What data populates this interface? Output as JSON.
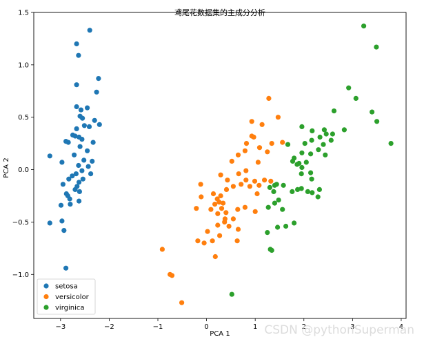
{
  "chart_data": {
    "type": "scatter",
    "title": "鸢尾花数据集的主成分分析",
    "xlabel": "PCA 1",
    "ylabel": "PCA 2",
    "xlim": [
      -3.55,
      4.1
    ],
    "ylim": [
      -1.42,
      1.5
    ],
    "xticks": [
      -3,
      -2,
      -1,
      0,
      1,
      2,
      3,
      4
    ],
    "xtick_labels": [
      "−3",
      "−2",
      "−1",
      "0",
      "1",
      "2",
      "3",
      "4"
    ],
    "yticks": [
      -1.0,
      -0.5,
      0.0,
      0.5,
      1.0,
      1.5
    ],
    "ytick_labels": [
      "−1.0",
      "−0.5",
      "0.0",
      "0.5",
      "1.0",
      "1.5"
    ],
    "grid": false,
    "legend_position": "lower-left",
    "series": [
      {
        "name": "setosa",
        "color": "#1f77b4",
        "points": [
          [
            -2.4,
            1.33
          ],
          [
            -2.67,
            1.2
          ],
          [
            -2.63,
            1.09
          ],
          [
            -2.22,
            0.87
          ],
          [
            -2.67,
            0.81
          ],
          [
            -2.26,
            0.74
          ],
          [
            -2.67,
            0.6
          ],
          [
            -2.58,
            0.57
          ],
          [
            -2.45,
            0.59
          ],
          [
            -2.6,
            0.51
          ],
          [
            -2.55,
            0.49
          ],
          [
            -2.3,
            0.47
          ],
          [
            -2.51,
            0.42
          ],
          [
            -2.41,
            0.41
          ],
          [
            -2.2,
            0.43
          ],
          [
            -2.67,
            0.39
          ],
          [
            -2.75,
            0.33
          ],
          [
            -2.62,
            0.31
          ],
          [
            -2.7,
            0.32
          ],
          [
            -2.56,
            0.29
          ],
          [
            -2.33,
            0.26
          ],
          [
            -2.89,
            0.27
          ],
          [
            -2.84,
            0.26
          ],
          [
            -2.6,
            0.22
          ],
          [
            -2.45,
            0.18
          ],
          [
            -3.22,
            0.13
          ],
          [
            -2.72,
            0.14
          ],
          [
            -2.52,
            0.09
          ],
          [
            -2.35,
            0.08
          ],
          [
            -2.63,
            0.04
          ],
          [
            -2.97,
            0.07
          ],
          [
            -2.43,
            0.03
          ],
          [
            -2.56,
            -0.01
          ],
          [
            -2.68,
            -0.04
          ],
          [
            -2.38,
            -0.04
          ],
          [
            -2.76,
            -0.06
          ],
          [
            -2.83,
            -0.09
          ],
          [
            -2.54,
            -0.09
          ],
          [
            -2.62,
            -0.12
          ],
          [
            -2.95,
            -0.14
          ],
          [
            -2.66,
            -0.16
          ],
          [
            -2.7,
            -0.19
          ],
          [
            -2.61,
            -0.21
          ],
          [
            -2.88,
            -0.23
          ],
          [
            -2.85,
            -0.25
          ],
          [
            -2.81,
            -0.28
          ],
          [
            -2.62,
            -0.3
          ],
          [
            -2.99,
            -0.34
          ],
          [
            -2.8,
            -0.33
          ],
          [
            -2.97,
            -0.49
          ],
          [
            -3.22,
            -0.51
          ],
          [
            -2.93,
            -0.58
          ],
          [
            -2.89,
            -0.94
          ]
        ]
      },
      {
        "name": "versicolor",
        "color": "#ff7f0e",
        "points": [
          [
            1.28,
            0.68
          ],
          [
            1.47,
            0.5
          ],
          [
            0.93,
            0.46
          ],
          [
            1.14,
            0.43
          ],
          [
            1.56,
            0.26
          ],
          [
            0.93,
            0.32
          ],
          [
            0.97,
            0.31
          ],
          [
            1.34,
            0.25
          ],
          [
            0.82,
            0.25
          ],
          [
            1.09,
            0.21
          ],
          [
            1.25,
            0.17
          ],
          [
            0.79,
            0.18
          ],
          [
            0.65,
            0.14
          ],
          [
            1.06,
            0.07
          ],
          [
            0.52,
            0.08
          ],
          [
            0.81,
            -0.01
          ],
          [
            0.66,
            -0.04
          ],
          [
            0.29,
            -0.05
          ],
          [
            0.81,
            -0.1
          ],
          [
            0.43,
            -0.1
          ],
          [
            1.19,
            -0.1
          ],
          [
            0.99,
            -0.11
          ],
          [
            0.71,
            -0.14
          ],
          [
            1.32,
            -0.11
          ],
          [
            1.08,
            -0.15
          ],
          [
            0.89,
            -0.16
          ],
          [
            -0.12,
            -0.14
          ],
          [
            0.55,
            -0.16
          ],
          [
            0.41,
            -0.19
          ],
          [
            1.04,
            -0.23
          ],
          [
            0.29,
            -0.25
          ],
          [
            0.14,
            -0.23
          ],
          [
            -0.11,
            -0.26
          ],
          [
            0.26,
            -0.31
          ],
          [
            0.34,
            -0.32
          ],
          [
            0.22,
            -0.28
          ],
          [
            0.17,
            -0.33
          ],
          [
            0.31,
            -0.37
          ],
          [
            0.09,
            -0.38
          ],
          [
            0.23,
            -0.42
          ],
          [
            -0.21,
            -0.37
          ],
          [
            0.79,
            -0.36
          ],
          [
            0.64,
            -0.38
          ],
          [
            0.4,
            -0.41
          ],
          [
            1.0,
            -0.4
          ],
          [
            0.55,
            -0.47
          ],
          [
            0.38,
            -0.47
          ],
          [
            0.37,
            -0.5
          ],
          [
            0.23,
            -0.53
          ],
          [
            0.46,
            -0.54
          ],
          [
            0.65,
            -0.57
          ],
          [
            0.02,
            -0.59
          ],
          [
            0.27,
            -0.63
          ],
          [
            0.63,
            -0.68
          ],
          [
            -0.18,
            -0.68
          ],
          [
            0.12,
            -0.68
          ],
          [
            -0.05,
            -0.7
          ],
          [
            0.18,
            -0.83
          ],
          [
            -0.91,
            -0.76
          ],
          [
            -0.75,
            -1.0
          ],
          [
            -0.71,
            -1.01
          ],
          [
            -0.51,
            -1.27
          ]
        ]
      },
      {
        "name": "virginica",
        "color": "#2ca02c",
        "points": [
          [
            3.23,
            1.37
          ],
          [
            3.49,
            1.17
          ],
          [
            2.92,
            0.78
          ],
          [
            3.07,
            0.68
          ],
          [
            2.62,
            0.56
          ],
          [
            3.4,
            0.55
          ],
          [
            3.5,
            0.46
          ],
          [
            2.42,
            0.38
          ],
          [
            2.83,
            0.38
          ],
          [
            2.17,
            0.37
          ],
          [
            2.46,
            0.34
          ],
          [
            2.59,
            0.34
          ],
          [
            1.96,
            0.41
          ],
          [
            2.33,
            0.31
          ],
          [
            2.16,
            0.28
          ],
          [
            2.56,
            0.28
          ],
          [
            2.02,
            0.25
          ],
          [
            2.4,
            0.24
          ],
          [
            1.67,
            0.24
          ],
          [
            3.79,
            0.25
          ],
          [
            2.14,
            0.15
          ],
          [
            1.96,
            0.16
          ],
          [
            2.3,
            0.19
          ],
          [
            2.44,
            0.14
          ],
          [
            1.8,
            0.11
          ],
          [
            1.9,
            0.06
          ],
          [
            1.96,
            0.02
          ],
          [
            2.05,
            0.07
          ],
          [
            2.14,
            -0.03
          ],
          [
            1.77,
            0.08
          ],
          [
            1.86,
            0.05
          ],
          [
            1.95,
            -0.04
          ],
          [
            2.16,
            -0.09
          ],
          [
            2.32,
            -0.19
          ],
          [
            1.3,
            -0.17
          ],
          [
            1.44,
            -0.14
          ],
          [
            1.4,
            -0.15
          ],
          [
            1.58,
            -0.15
          ],
          [
            1.38,
            -0.21
          ],
          [
            1.95,
            -0.18
          ],
          [
            2.08,
            -0.21
          ],
          [
            2.17,
            -0.22
          ],
          [
            1.76,
            -0.21
          ],
          [
            1.87,
            -0.19
          ],
          [
            1.48,
            -0.29
          ],
          [
            2.29,
            -0.26
          ],
          [
            1.4,
            -0.32
          ],
          [
            1.56,
            -0.38
          ],
          [
            1.27,
            -0.36
          ],
          [
            1.8,
            -0.51
          ],
          [
            1.63,
            -0.54
          ],
          [
            1.46,
            -0.55
          ],
          [
            1.25,
            -0.6
          ],
          [
            1.31,
            -0.76
          ],
          [
            1.34,
            -0.77
          ],
          [
            0.52,
            -1.19
          ]
        ]
      }
    ]
  },
  "watermark": "CSDN @pythonSuperman"
}
